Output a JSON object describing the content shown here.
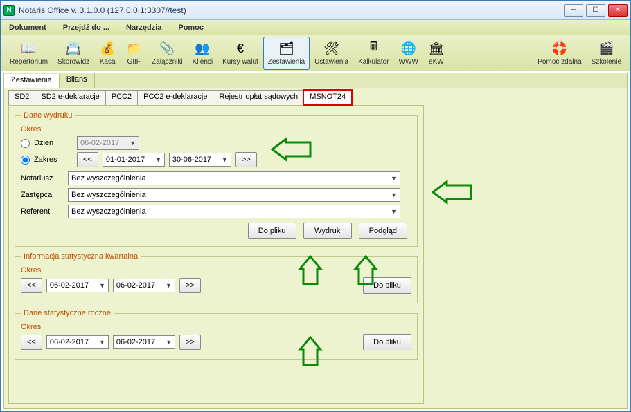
{
  "window": {
    "title": "Notaris Office v. 3.1.0.0 (127.0.0.1:3307//test)",
    "icon_letter": "N"
  },
  "menu": [
    "Dokument",
    "Przejdź do ...",
    "Narzędzia",
    "Pomoc"
  ],
  "toolbar": [
    {
      "label": "Repertorium",
      "icon": "📖",
      "name": "toolbar-repertorium"
    },
    {
      "label": "Skorowidz",
      "icon": "📇",
      "name": "toolbar-skorowidz"
    },
    {
      "label": "Kasa",
      "icon": "💰",
      "name": "toolbar-kasa"
    },
    {
      "label": "GIIF",
      "icon": "📁",
      "name": "toolbar-giif"
    },
    {
      "label": "Załączniki",
      "icon": "📎",
      "name": "toolbar-zalaczniki"
    },
    {
      "label": "Klienci",
      "icon": "👥",
      "name": "toolbar-klienci"
    },
    {
      "label": "Kursy walut",
      "icon": "€",
      "name": "toolbar-kursy"
    },
    {
      "label": "Zestawienia",
      "icon": "🗂",
      "name": "toolbar-zestawienia",
      "active": true
    },
    {
      "label": "Ustawienia",
      "icon": "🛠",
      "name": "toolbar-ustawienia"
    },
    {
      "label": "Kalkulator",
      "icon": "🖩",
      "name": "toolbar-kalkulator"
    },
    {
      "label": "WWW",
      "icon": "🌐",
      "name": "toolbar-www"
    },
    {
      "label": "eKW",
      "icon": "🏛",
      "name": "toolbar-ekw"
    }
  ],
  "toolbar_right": [
    {
      "label": "Pomoc zdalna",
      "icon": "🛟",
      "name": "toolbar-remote-help"
    },
    {
      "label": "Szkolenie",
      "icon": "🎬",
      "name": "toolbar-training"
    }
  ],
  "tabs1": [
    {
      "label": "Zestawienia",
      "active": true
    },
    {
      "label": "Bilans",
      "active": false
    }
  ],
  "tabs2": [
    "SD2",
    "SD2 e-deklaracje",
    "PCC2",
    "PCC2 e-deklaracje",
    "Rejestr opłat sądowych",
    "MSNOT24"
  ],
  "tabs2_active": "MSNOT24",
  "section1": {
    "legend": "Dane wydruku",
    "okres_label": "Okres",
    "dzien_label": "Dzień",
    "dzien_value": "06-02-2017",
    "zakres_label": "Zakres",
    "zakres_from": "01-01-2017",
    "zakres_to": "30-06-2017",
    "prev": "<<",
    "next": ">>",
    "notariusz_label": "Notariusz",
    "notariusz_value": "Bez wyszczególnienia",
    "zastepca_label": "Zastępca",
    "zastepca_value": "Bez wyszczególnienia",
    "referent_label": "Referent",
    "referent_value": "Bez wyszczególnienia",
    "btn_file": "Do pliku",
    "btn_print": "Wydruk",
    "btn_preview": "Podgląd"
  },
  "section2": {
    "legend": "Informacja statystyczna kwartalna",
    "okres_label": "Okres",
    "prev": "<<",
    "next": ">>",
    "from": "06-02-2017",
    "to": "06-02-2017",
    "btn_file": "Do pliku"
  },
  "section3": {
    "legend": "Dane statystyczne roczne",
    "okres_label": "Okres",
    "prev": "<<",
    "next": ">>",
    "from": "06-02-2017",
    "to": "06-02-2017",
    "btn_file": "Do pliku"
  },
  "colors": {
    "accent": "#0a8a0a",
    "highlight": "#d00",
    "panel": "#edf2cf"
  }
}
